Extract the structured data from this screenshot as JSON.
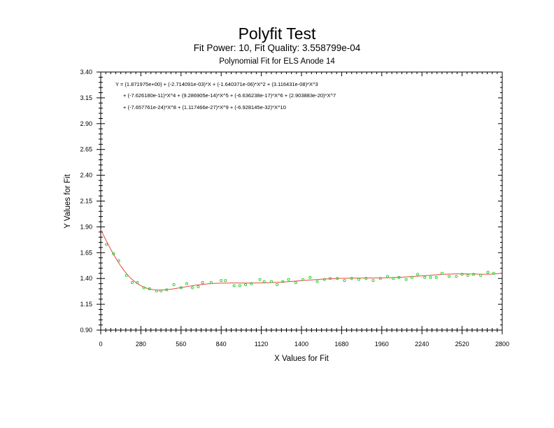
{
  "chart_data": {
    "type": "scatter",
    "title": "Polyfit Test",
    "subtitle": "Fit Power: 10, Fit Quality: 3.558799e-04",
    "subtitle2": "Polynomial Fit for ELS Anode 14",
    "xlabel": "X Values for Fit",
    "ylabel": "Y Values for Fit",
    "xlim": [
      0,
      2800
    ],
    "ylim": [
      0.9,
      3.4
    ],
    "xticks": [
      0,
      280,
      560,
      840,
      1120,
      1400,
      1680,
      1960,
      2240,
      2520,
      2800
    ],
    "yticks": [
      "0.90",
      "1.15",
      "1.40",
      "1.65",
      "1.90",
      "2.15",
      "2.40",
      "2.65",
      "2.90",
      "3.15",
      "3.40"
    ],
    "grid": false,
    "equation_lines": [
      "Y = (1.871975e+00) + (-2.714091e-03)*X + (-1.640371e-06)*X^2 + (3.116431e-08)*X^3",
      "+ (-7.626180e-11)*X^4 + (9.286905e-14)*X^5 + (-6.636238e-17)*X^6 + (2.903883e-20)*X^7",
      "+ (-7.657761e-24)*X^8 + (1.117466e-27)*X^9 + (-6.928145e-32)*X^10"
    ],
    "series": [
      {
        "type": "scatter",
        "color": "#22cc22",
        "x": [
          40,
          90,
          125,
          180,
          220,
          255,
          300,
          340,
          390,
          420,
          460,
          510,
          560,
          600,
          640,
          680,
          710,
          770,
          840,
          870,
          930,
          970,
          1010,
          1050,
          1110,
          1140,
          1190,
          1230,
          1270,
          1310,
          1360,
          1410,
          1460,
          1510,
          1560,
          1600,
          1650,
          1700,
          1750,
          1800,
          1850,
          1900,
          1950,
          2000,
          2040,
          2080,
          2130,
          2170,
          2210,
          2260,
          2300,
          2340,
          2380,
          2430,
          2480,
          2520,
          2560,
          2600,
          2650,
          2700,
          2740
        ],
        "y": [
          1.73,
          1.64,
          1.57,
          1.43,
          1.36,
          1.36,
          1.31,
          1.3,
          1.28,
          1.28,
          1.29,
          1.34,
          1.31,
          1.35,
          1.31,
          1.32,
          1.36,
          1.36,
          1.38,
          1.38,
          1.33,
          1.33,
          1.34,
          1.35,
          1.39,
          1.37,
          1.37,
          1.34,
          1.37,
          1.39,
          1.36,
          1.39,
          1.41,
          1.37,
          1.39,
          1.4,
          1.4,
          1.38,
          1.4,
          1.39,
          1.4,
          1.38,
          1.4,
          1.42,
          1.4,
          1.41,
          1.39,
          1.41,
          1.44,
          1.41,
          1.41,
          1.41,
          1.45,
          1.42,
          1.42,
          1.44,
          1.43,
          1.44,
          1.43,
          1.46,
          1.45
        ]
      },
      {
        "type": "line",
        "color": "#ee4444",
        "coefficients": [
          1.871975,
          -0.002714091,
          -1.640371e-06,
          3.116431e-08,
          -7.62618e-11,
          9.286905e-14,
          -6.636238e-17,
          2.903883e-20,
          -7.657761e-24,
          1.117466e-27,
          -6.928145e-32
        ]
      }
    ]
  }
}
